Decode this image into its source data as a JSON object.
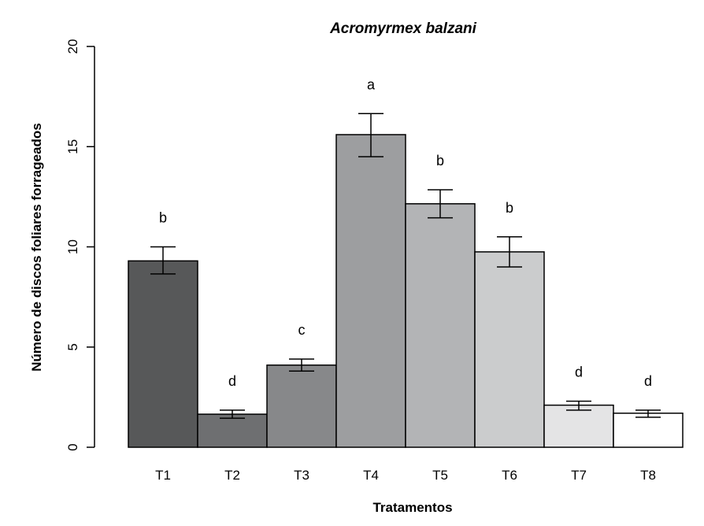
{
  "chart_data": {
    "type": "bar",
    "title": "Acromyrmex balzani",
    "xlabel": "Tratamentos",
    "ylabel": "Número de discos foliares forrageados",
    "ylim": [
      0,
      20
    ],
    "yticks": [
      "0",
      "5",
      "10",
      "15",
      "20"
    ],
    "categories": [
      "T1",
      "T2",
      "T3",
      "T4",
      "T5",
      "T6",
      "T7",
      "T8"
    ],
    "values": [
      9.3,
      1.65,
      4.1,
      15.6,
      12.15,
      9.75,
      2.1,
      1.7
    ],
    "error_low": [
      8.65,
      1.45,
      3.8,
      14.5,
      11.45,
      9.0,
      1.85,
      1.5
    ],
    "error_high": [
      10.0,
      1.85,
      4.4,
      16.65,
      12.85,
      10.5,
      2.3,
      1.85
    ],
    "significance_letters": [
      "b",
      "d",
      "c",
      "a",
      "b",
      "b",
      "d",
      "d"
    ],
    "bar_colors": [
      "#575859",
      "#6e6f71",
      "#87888a",
      "#9d9ea0",
      "#b3b4b6",
      "#cbcccd",
      "#e4e4e5",
      "#ffffff"
    ],
    "grid": false,
    "legend": "none"
  }
}
